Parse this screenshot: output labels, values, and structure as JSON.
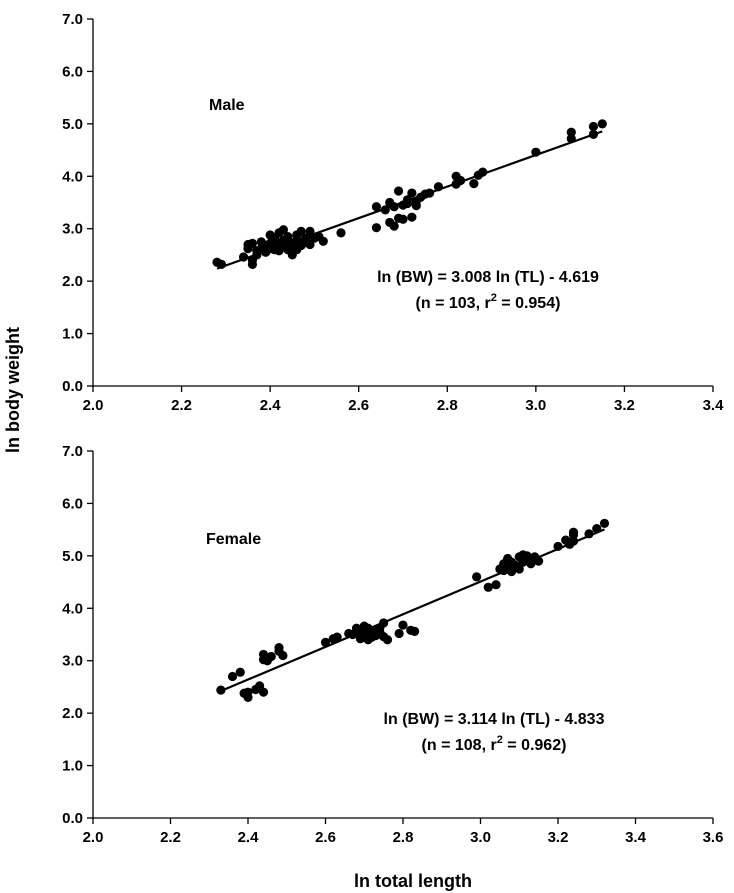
{
  "figure": {
    "ylabel": "ln body weight",
    "xlabel": "ln total length"
  },
  "chart_data": [
    {
      "type": "scatter",
      "panel_label": "Male",
      "xlim": [
        2.0,
        3.4
      ],
      "ylim": [
        0.0,
        7.0
      ],
      "x_ticks": [
        "2.0",
        "2.2",
        "2.4",
        "2.6",
        "2.8",
        "3.0",
        "3.2",
        "3.4"
      ],
      "y_ticks": [
        "0.0",
        "1.0",
        "2.0",
        "3.0",
        "4.0",
        "5.0",
        "6.0",
        "7.0"
      ],
      "equation": "ln (BW) = 3.008 ln (TL) - 4.619",
      "stats_prefix": "(n = 103, r",
      "stats_sup": "2",
      "stats_suffix": " = 0.954)",
      "regression": {
        "slope": 3.008,
        "intercept": -4.619,
        "x_range": [
          2.28,
          3.15
        ]
      },
      "points": [
        [
          2.28,
          2.36
        ],
        [
          2.29,
          2.32
        ],
        [
          2.34,
          2.46
        ],
        [
          2.35,
          2.62
        ],
        [
          2.35,
          2.7
        ],
        [
          2.36,
          2.72
        ],
        [
          2.36,
          2.4
        ],
        [
          2.36,
          2.32
        ],
        [
          2.37,
          2.58
        ],
        [
          2.37,
          2.5
        ],
        [
          2.38,
          2.62
        ],
        [
          2.38,
          2.75
        ],
        [
          2.39,
          2.68
        ],
        [
          2.39,
          2.55
        ],
        [
          2.4,
          2.62
        ],
        [
          2.4,
          2.72
        ],
        [
          2.4,
          2.88
        ],
        [
          2.41,
          2.6
        ],
        [
          2.41,
          2.75
        ],
        [
          2.41,
          2.82
        ],
        [
          2.42,
          2.68
        ],
        [
          2.42,
          2.58
        ],
        [
          2.42,
          2.92
        ],
        [
          2.43,
          2.78
        ],
        [
          2.43,
          2.68
        ],
        [
          2.43,
          2.98
        ],
        [
          2.44,
          2.72
        ],
        [
          2.44,
          2.85
        ],
        [
          2.44,
          2.6
        ],
        [
          2.45,
          2.5
        ],
        [
          2.45,
          2.72
        ],
        [
          2.45,
          2.68
        ],
        [
          2.46,
          2.78
        ],
        [
          2.46,
          2.88
        ],
        [
          2.46,
          2.6
        ],
        [
          2.47,
          2.72
        ],
        [
          2.47,
          2.68
        ],
        [
          2.47,
          2.95
        ],
        [
          2.48,
          2.82
        ],
        [
          2.48,
          2.74
        ],
        [
          2.49,
          2.95
        ],
        [
          2.49,
          2.7
        ],
        [
          2.5,
          2.82
        ],
        [
          2.51,
          2.85
        ],
        [
          2.52,
          2.76
        ],
        [
          2.56,
          2.92
        ],
        [
          2.64,
          3.02
        ],
        [
          2.64,
          3.42
        ],
        [
          2.66,
          3.36
        ],
        [
          2.67,
          3.5
        ],
        [
          2.67,
          3.12
        ],
        [
          2.68,
          3.05
        ],
        [
          2.68,
          3.42
        ],
        [
          2.69,
          3.2
        ],
        [
          2.69,
          3.72
        ],
        [
          2.7,
          3.45
        ],
        [
          2.7,
          3.18
        ],
        [
          2.71,
          3.55
        ],
        [
          2.71,
          3.48
        ],
        [
          2.72,
          3.22
        ],
        [
          2.72,
          3.68
        ],
        [
          2.73,
          3.52
        ],
        [
          2.73,
          3.44
        ],
        [
          2.74,
          3.6
        ],
        [
          2.75,
          3.66
        ],
        [
          2.76,
          3.68
        ],
        [
          2.78,
          3.8
        ],
        [
          2.82,
          4.0
        ],
        [
          2.82,
          3.85
        ],
        [
          2.83,
          3.92
        ],
        [
          2.86,
          3.86
        ],
        [
          2.87,
          4.02
        ],
        [
          2.88,
          4.08
        ],
        [
          3.0,
          4.46
        ],
        [
          3.08,
          4.72
        ],
        [
          3.08,
          4.84
        ],
        [
          3.13,
          4.8
        ],
        [
          3.13,
          4.95
        ],
        [
          3.15,
          5.0
        ]
      ]
    },
    {
      "type": "scatter",
      "panel_label": "Female",
      "xlim": [
        2.0,
        3.6
      ],
      "ylim": [
        0.0,
        7.0
      ],
      "x_ticks": [
        "2.0",
        "2.2",
        "2.4",
        "2.6",
        "2.8",
        "3.0",
        "3.2",
        "3.4",
        "3.6"
      ],
      "y_ticks": [
        "0.0",
        "1.0",
        "2.0",
        "3.0",
        "4.0",
        "5.0",
        "6.0",
        "7.0"
      ],
      "equation": "ln (BW) = 3.114 ln (TL) - 4.833",
      "stats_prefix": "(n = 108, r",
      "stats_sup": "2",
      "stats_suffix": " = 0.962)",
      "regression": {
        "slope": 3.114,
        "intercept": -4.833,
        "x_range": [
          2.33,
          3.32
        ]
      },
      "points": [
        [
          2.33,
          2.44
        ],
        [
          2.36,
          2.7
        ],
        [
          2.38,
          2.78
        ],
        [
          2.39,
          2.38
        ],
        [
          2.4,
          2.3
        ],
        [
          2.4,
          2.4
        ],
        [
          2.42,
          2.45
        ],
        [
          2.43,
          2.52
        ],
        [
          2.44,
          2.4
        ],
        [
          2.44,
          3.12
        ],
        [
          2.44,
          3.02
        ],
        [
          2.45,
          3.0
        ],
        [
          2.46,
          3.08
        ],
        [
          2.48,
          3.18
        ],
        [
          2.48,
          3.25
        ],
        [
          2.49,
          3.1
        ],
        [
          2.6,
          3.35
        ],
        [
          2.62,
          3.42
        ],
        [
          2.63,
          3.45
        ],
        [
          2.66,
          3.52
        ],
        [
          2.67,
          3.5
        ],
        [
          2.68,
          3.62
        ],
        [
          2.68,
          3.55
        ],
        [
          2.69,
          3.5
        ],
        [
          2.69,
          3.42
        ],
        [
          2.7,
          3.58
        ],
        [
          2.7,
          3.66
        ],
        [
          2.7,
          3.48
        ],
        [
          2.71,
          3.4
        ],
        [
          2.71,
          3.56
        ],
        [
          2.71,
          3.62
        ],
        [
          2.72,
          3.52
        ],
        [
          2.72,
          3.45
        ],
        [
          2.73,
          3.58
        ],
        [
          2.73,
          3.48
        ],
        [
          2.74,
          3.55
        ],
        [
          2.74,
          3.62
        ],
        [
          2.75,
          3.72
        ],
        [
          2.75,
          3.46
        ],
        [
          2.76,
          3.4
        ],
        [
          2.79,
          3.52
        ],
        [
          2.8,
          3.68
        ],
        [
          2.82,
          3.58
        ],
        [
          2.83,
          3.56
        ],
        [
          2.99,
          4.6
        ],
        [
          3.02,
          4.4
        ],
        [
          3.04,
          4.45
        ],
        [
          3.05,
          4.75
        ],
        [
          3.06,
          4.85
        ],
        [
          3.06,
          4.72
        ],
        [
          3.07,
          4.8
        ],
        [
          3.07,
          4.95
        ],
        [
          3.08,
          4.7
        ],
        [
          3.08,
          4.88
        ],
        [
          3.09,
          4.78
        ],
        [
          3.09,
          4.82
        ],
        [
          3.1,
          4.75
        ],
        [
          3.1,
          4.98
        ],
        [
          3.11,
          4.88
        ],
        [
          3.11,
          5.02
        ],
        [
          3.12,
          4.92
        ],
        [
          3.12,
          5.0
        ],
        [
          3.13,
          4.85
        ],
        [
          3.13,
          4.95
        ],
        [
          3.14,
          4.98
        ],
        [
          3.15,
          4.9
        ],
        [
          3.2,
          5.18
        ],
        [
          3.22,
          5.3
        ],
        [
          3.23,
          5.22
        ],
        [
          3.24,
          5.4
        ],
        [
          3.24,
          5.28
        ],
        [
          3.24,
          5.45
        ],
        [
          3.28,
          5.42
        ],
        [
          3.3,
          5.52
        ],
        [
          3.32,
          5.62
        ]
      ]
    }
  ]
}
